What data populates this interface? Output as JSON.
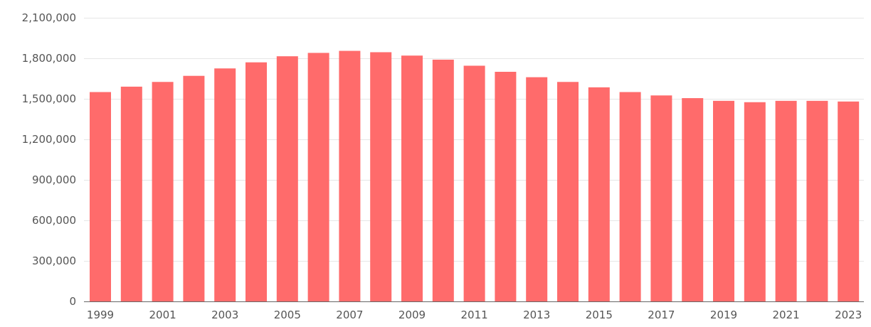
{
  "chart_data": {
    "type": "bar",
    "title": "",
    "xlabel": "",
    "ylabel": "",
    "categories": [
      "1999",
      "2000",
      "2001",
      "2002",
      "2003",
      "2004",
      "2005",
      "2006",
      "2007",
      "2008",
      "2009",
      "2010",
      "2011",
      "2012",
      "2013",
      "2014",
      "2015",
      "2016",
      "2017",
      "2018",
      "2019",
      "2020",
      "2021",
      "2022",
      "2023"
    ],
    "x_tick_labels": [
      "1999",
      "2001",
      "2003",
      "2005",
      "2007",
      "2009",
      "2011",
      "2013",
      "2015",
      "2017",
      "2019",
      "2021",
      "2023"
    ],
    "values": [
      1550000,
      1590000,
      1625000,
      1670000,
      1725000,
      1770000,
      1815000,
      1840000,
      1855000,
      1845000,
      1820000,
      1790000,
      1745000,
      1700000,
      1660000,
      1625000,
      1585000,
      1550000,
      1525000,
      1505000,
      1485000,
      1475000,
      1485000,
      1485000,
      1480000
    ],
    "ylim": [
      0,
      2100000
    ],
    "y_ticks": [
      0,
      300000,
      600000,
      900000,
      1200000,
      1500000,
      1800000,
      2100000
    ],
    "y_tick_labels": [
      "0",
      "300,000",
      "600,000",
      "900,000",
      "1,200,000",
      "1,500,000",
      "1,800,000",
      "2,100,000"
    ],
    "grid": true,
    "legend": "none",
    "bar_color": "#ff6b6b"
  }
}
